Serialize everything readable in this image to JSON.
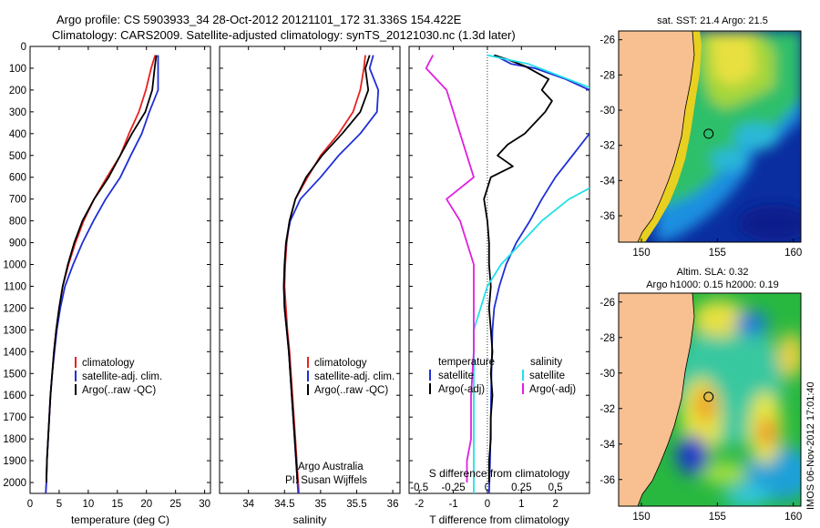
{
  "title": {
    "line1": "Argo profile: CS 5903933_34 28-Oct-2012 20121101_172 31.336S 154.422E",
    "line2": "Climatology: CARS2009. Satellite-adjusted climatology: synTS_20121030.nc (1.3d later)"
  },
  "colors": {
    "climatology": "#e8211f",
    "satellite": "#1f2fd6",
    "argo": "#000000",
    "satellite_s": "#22e0e8",
    "argo_s": "#e020e0",
    "land": "#f8c090"
  },
  "chart_data": [
    {
      "type": "line",
      "panel": "temperature",
      "xlabel": "temperature (deg C)",
      "ylabel": "",
      "xlim": [
        0,
        31
      ],
      "ylim": [
        2050,
        0
      ],
      "xticks": [
        0,
        5,
        10,
        15,
        20,
        25,
        30
      ],
      "yticks": [
        0,
        100,
        200,
        300,
        400,
        500,
        600,
        700,
        800,
        900,
        1000,
        1100,
        1200,
        1300,
        1400,
        1500,
        1600,
        1700,
        1800,
        1900,
        2000
      ],
      "legend": {
        "placement": "lower-right",
        "entries": [
          "climatology",
          "satellite-adj. clim.",
          "Argo(..raw -QC)"
        ]
      },
      "series": [
        {
          "name": "climatology",
          "color": "#e8211f",
          "points": [
            [
              21.5,
              40
            ],
            [
              20.8,
              100
            ],
            [
              19.9,
              200
            ],
            [
              18.7,
              300
            ],
            [
              17.0,
              400
            ],
            [
              15.5,
              500
            ],
            [
              13.2,
              600
            ],
            [
              11.0,
              700
            ],
            [
              9.2,
              800
            ],
            [
              7.8,
              900
            ],
            [
              6.6,
              1000
            ],
            [
              5.6,
              1100
            ],
            [
              5.0,
              1200
            ],
            [
              4.5,
              1300
            ],
            [
              4.1,
              1400
            ],
            [
              3.8,
              1500
            ],
            [
              3.5,
              1600
            ],
            [
              3.3,
              1700
            ],
            [
              3.1,
              1800
            ],
            [
              2.9,
              1900
            ],
            [
              2.8,
              2000
            ],
            [
              2.7,
              2050
            ]
          ]
        },
        {
          "name": "satellite-adj. clim.",
          "color": "#1f2fd6",
          "points": [
            [
              22.0,
              40
            ],
            [
              22.0,
              100
            ],
            [
              22.0,
              200
            ],
            [
              20.5,
              300
            ],
            [
              19.2,
              400
            ],
            [
              17.3,
              500
            ],
            [
              15.5,
              600
            ],
            [
              13.0,
              700
            ],
            [
              10.9,
              800
            ],
            [
              9.0,
              900
            ],
            [
              7.4,
              1000
            ],
            [
              6.0,
              1100
            ],
            [
              5.2,
              1200
            ],
            [
              4.6,
              1300
            ],
            [
              4.2,
              1400
            ],
            [
              3.8,
              1500
            ],
            [
              3.5,
              1600
            ],
            [
              3.3,
              1700
            ],
            [
              3.1,
              1800
            ],
            [
              2.9,
              1900
            ],
            [
              2.8,
              2000
            ],
            [
              2.7,
              2050
            ]
          ]
        },
        {
          "name": "Argo(..raw -QC)",
          "color": "#000000",
          "points": [
            [
              21.7,
              40
            ],
            [
              21.4,
              100
            ],
            [
              21.0,
              200
            ],
            [
              19.8,
              300
            ],
            [
              17.5,
              400
            ],
            [
              15.5,
              500
            ],
            [
              13.5,
              600
            ],
            [
              11.0,
              700
            ],
            [
              9.0,
              800
            ],
            [
              7.6,
              900
            ],
            [
              6.5,
              1000
            ],
            [
              5.6,
              1100
            ],
            [
              5.0,
              1200
            ],
            [
              4.5,
              1300
            ],
            [
              4.1,
              1400
            ],
            [
              3.8,
              1500
            ],
            [
              3.5,
              1600
            ],
            [
              3.3,
              1700
            ],
            [
              3.1,
              1800
            ],
            [
              2.9,
              1900
            ],
            [
              2.8,
              2000
            ]
          ]
        }
      ]
    },
    {
      "type": "line",
      "panel": "salinity",
      "xlabel": "salinity",
      "xlim": [
        33.6,
        36.1
      ],
      "ylim": [
        2050,
        0
      ],
      "xticks": [
        34,
        34.5,
        35,
        35.5,
        36
      ],
      "legend": {
        "placement": "lower-right",
        "entries": [
          "climatology",
          "satellite-adj. clim.",
          "Argo(..raw -QC)"
        ]
      },
      "annotation": [
        "Argo Australia",
        "PI: Susan Wijffels"
      ],
      "series": [
        {
          "name": "climatology",
          "color": "#e8211f",
          "points": [
            [
              35.62,
              40
            ],
            [
              35.6,
              100
            ],
            [
              35.55,
              200
            ],
            [
              35.45,
              300
            ],
            [
              35.25,
              400
            ],
            [
              35.0,
              500
            ],
            [
              34.82,
              600
            ],
            [
              34.65,
              700
            ],
            [
              34.57,
              800
            ],
            [
              34.53,
              900
            ],
            [
              34.51,
              1000
            ],
            [
              34.5,
              1100
            ],
            [
              34.52,
              1200
            ],
            [
              34.54,
              1300
            ],
            [
              34.57,
              1400
            ],
            [
              34.59,
              1500
            ],
            [
              34.61,
              1600
            ],
            [
              34.63,
              1700
            ],
            [
              34.65,
              1800
            ],
            [
              34.67,
              1900
            ],
            [
              34.69,
              2000
            ],
            [
              34.7,
              2050
            ]
          ]
        },
        {
          "name": "satellite-adj. clim.",
          "color": "#1f2fd6",
          "points": [
            [
              35.73,
              40
            ],
            [
              35.68,
              100
            ],
            [
              35.8,
              200
            ],
            [
              35.78,
              300
            ],
            [
              35.55,
              400
            ],
            [
              35.25,
              500
            ],
            [
              35.0,
              600
            ],
            [
              34.72,
              700
            ],
            [
              34.58,
              800
            ],
            [
              34.52,
              900
            ],
            [
              34.5,
              1000
            ],
            [
              34.49,
              1100
            ],
            [
              34.5,
              1200
            ],
            [
              34.53,
              1300
            ],
            [
              34.56,
              1400
            ],
            [
              34.58,
              1500
            ],
            [
              34.6,
              1600
            ],
            [
              34.62,
              1700
            ],
            [
              34.64,
              1800
            ],
            [
              34.66,
              1900
            ],
            [
              34.68,
              2000
            ],
            [
              34.69,
              2050
            ]
          ]
        },
        {
          "name": "Argo(..raw -QC)",
          "color": "#000000",
          "points": [
            [
              35.68,
              40
            ],
            [
              35.62,
              100
            ],
            [
              35.66,
              200
            ],
            [
              35.55,
              300
            ],
            [
              35.3,
              400
            ],
            [
              35.02,
              500
            ],
            [
              34.8,
              600
            ],
            [
              34.65,
              700
            ],
            [
              34.57,
              800
            ],
            [
              34.52,
              900
            ],
            [
              34.5,
              1000
            ],
            [
              34.49,
              1100
            ],
            [
              34.5,
              1200
            ],
            [
              34.53,
              1300
            ],
            [
              34.56,
              1400
            ],
            [
              34.58,
              1500
            ],
            [
              34.6,
              1600
            ],
            [
              34.62,
              1700
            ],
            [
              34.64,
              1800
            ],
            [
              34.66,
              1900
            ],
            [
              34.68,
              2000
            ]
          ]
        }
      ]
    },
    {
      "type": "line",
      "panel": "difference",
      "xlabel": "T difference from climatology",
      "xlabel_top": "S difference from climatology",
      "xlim": [
        -2.3,
        3.0
      ],
      "ylim": [
        2050,
        0
      ],
      "xticks": [
        -2,
        -1,
        0,
        1,
        2
      ],
      "xticks_s": [
        -0.5,
        -0.25,
        0,
        0.25,
        0.5
      ],
      "xtick_labels_s": [
        "-0.5",
        "-0.25",
        "0",
        "0.25",
        "0.5"
      ],
      "legend": {
        "placement": "lower-center",
        "temperature_header": "temperature",
        "salinity_header": "salinity",
        "temperature_entries": [
          "satellite",
          "Argo(-adj)"
        ],
        "salinity_entries": [
          "satellite",
          "Argo(-adj)"
        ]
      },
      "series": [
        {
          "name": "satellite",
          "group": "temperature",
          "color": "#1f2fd6",
          "points": [
            [
              0.2,
              40
            ],
            [
              0.7,
              80
            ],
            [
              1.4,
              100
            ],
            [
              2.3,
              150
            ],
            [
              3.0,
              200
            ]
          ]
        },
        {
          "name": "satellite",
          "group": "temperature",
          "color": "#1f2fd6",
          "points": [
            [
              3.0,
              400
            ],
            [
              2.5,
              500
            ],
            [
              2.0,
              600
            ],
            [
              1.6,
              700
            ],
            [
              1.25,
              800
            ],
            [
              0.85,
              900
            ],
            [
              0.55,
              1000
            ],
            [
              0.35,
              1100
            ],
            [
              0.2,
              1200
            ],
            [
              0.15,
              1300
            ],
            [
              0.12,
              1500
            ],
            [
              0.1,
              1700
            ],
            [
              0.08,
              1900
            ],
            [
              0.05,
              2050
            ]
          ]
        },
        {
          "name": "Argo(-adj)",
          "group": "temperature",
          "color": "#000000",
          "points": [
            [
              0.2,
              40
            ],
            [
              0.6,
              60
            ],
            [
              1.1,
              90
            ],
            [
              1.8,
              150
            ],
            [
              1.6,
              200
            ],
            [
              1.9,
              250
            ],
            [
              1.7,
              300
            ],
            [
              1.1,
              400
            ],
            [
              0.6,
              450
            ],
            [
              0.3,
              500
            ],
            [
              0.75,
              550
            ],
            [
              0.1,
              600
            ],
            [
              -0.1,
              700
            ],
            [
              0.0,
              800
            ],
            [
              0.05,
              900
            ],
            [
              0.05,
              1000
            ],
            [
              0.1,
              1100
            ],
            [
              0.05,
              1200
            ],
            [
              0.1,
              1300
            ],
            [
              0.15,
              1400
            ],
            [
              0.1,
              1500
            ],
            [
              0.15,
              1600
            ],
            [
              0.1,
              1700
            ],
            [
              0.1,
              1800
            ],
            [
              0.05,
              1900
            ],
            [
              0.05,
              2000
            ]
          ]
        },
        {
          "name": "satellite",
          "group": "salinity",
          "color": "#22e0e8",
          "points": [
            [
              0.0,
              40
            ],
            [
              0.3,
              80
            ],
            [
              0.8,
              200
            ],
            [
              1.2,
              300
            ],
            [
              1.4,
              400
            ],
            [
              1.2,
              500
            ],
            [
              0.9,
              600
            ],
            [
              0.6,
              700
            ],
            [
              0.4,
              800
            ],
            [
              0.25,
              900
            ],
            [
              0.1,
              1000
            ],
            [
              0.0,
              1100
            ],
            [
              -0.05,
              1200
            ],
            [
              -0.1,
              1300
            ],
            [
              -0.1,
              1500
            ],
            [
              -0.1,
              1700
            ],
            [
              -0.1,
              1900
            ],
            [
              -0.1,
              2050
            ]
          ]
        },
        {
          "name": "Argo(-adj)",
          "group": "salinity",
          "color": "#e020e0",
          "points": [
            [
              -0.4,
              40
            ],
            [
              -0.45,
              100
            ],
            [
              -0.3,
              200
            ],
            [
              -0.25,
              300
            ],
            [
              -0.2,
              400
            ],
            [
              -0.15,
              500
            ],
            [
              -0.1,
              600
            ],
            [
              -0.3,
              700
            ],
            [
              -0.2,
              800
            ],
            [
              -0.15,
              900
            ],
            [
              -0.1,
              1000
            ],
            [
              -0.1,
              1200
            ],
            [
              -0.1,
              1400
            ],
            [
              -0.12,
              1600
            ],
            [
              -0.12,
              1800
            ],
            [
              -0.15,
              1900
            ],
            [
              -0.15,
              2000
            ]
          ]
        }
      ]
    },
    {
      "type": "heatmap",
      "panel": "sst_map",
      "title": "sat. SST: 21.4 Argo: 21.5",
      "xlim": [
        148.5,
        160.5
      ],
      "ylim": [
        -37.5,
        -25.5
      ],
      "xticks": [
        150,
        155,
        160
      ],
      "yticks": [
        -26,
        -28,
        -30,
        -32,
        -34,
        -36
      ],
      "marker": {
        "lon": 154.42,
        "lat": -31.34
      }
    },
    {
      "type": "heatmap",
      "panel": "sla_map",
      "title_line1": "Altim. SLA: 0.32",
      "title_line2": "Argo h1000: 0.15 h2000: 0.19",
      "xlim": [
        148.5,
        160.5
      ],
      "ylim": [
        -37.5,
        -25.5
      ],
      "xticks": [
        150,
        155,
        160
      ],
      "yticks": [
        -26,
        -28,
        -30,
        -32,
        -34,
        -36
      ],
      "marker": {
        "lon": 154.42,
        "lat": -31.34
      }
    }
  ],
  "watermark": "IMOS 06-Nov-2012 17:01:40"
}
